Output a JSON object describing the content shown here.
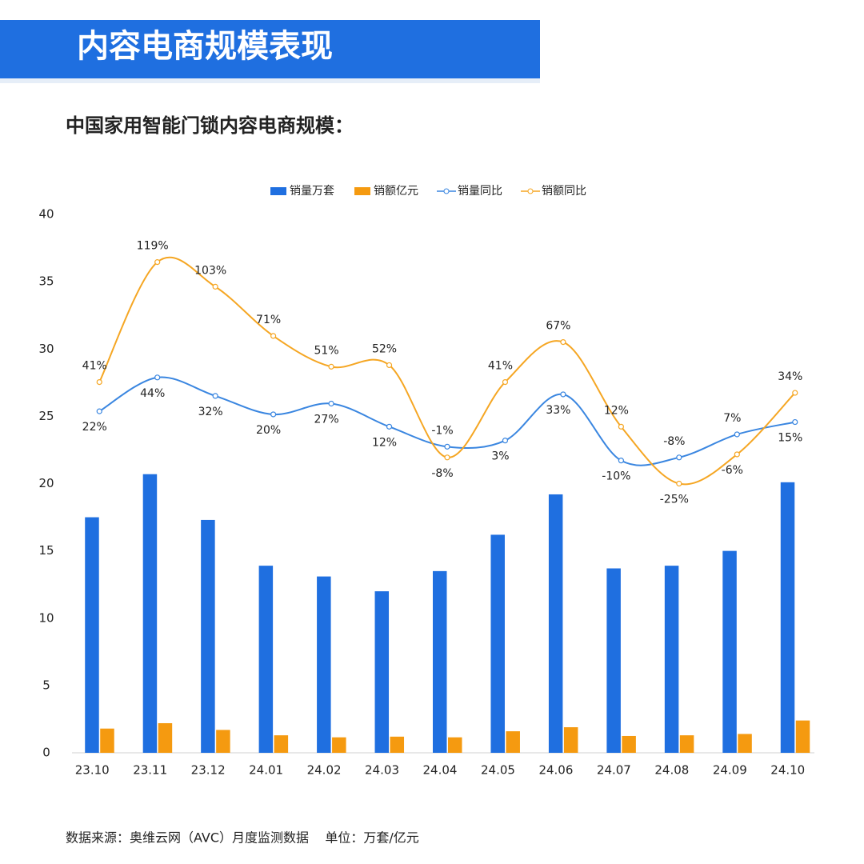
{
  "header": {
    "title": "内容电商规模表现"
  },
  "footer": {
    "source": "数据来源：奥维云网（AVC）月度监测数据    单位：万套/亿元"
  },
  "chart_data": {
    "type": "combo",
    "title": "中国家用智能门锁内容电商规模：",
    "categories": [
      "23.10",
      "23.11",
      "23.12",
      "24.01",
      "24.02",
      "24.03",
      "24.04",
      "24.05",
      "24.06",
      "24.07",
      "24.08",
      "24.09",
      "24.10"
    ],
    "ylim": [
      0,
      40
    ],
    "yticks": [
      0,
      5,
      10,
      15,
      20,
      25,
      30,
      35,
      40
    ],
    "y2lim": [
      -200,
      150
    ],
    "series": [
      {
        "name": "销量万套",
        "type": "bar",
        "color": "#1f6fe0",
        "values": [
          17.5,
          20.7,
          17.3,
          13.9,
          13.1,
          12.0,
          13.5,
          16.2,
          19.2,
          13.7,
          13.9,
          15.0,
          20.1
        ]
      },
      {
        "name": "销额亿元",
        "type": "bar",
        "color": "#f59a10",
        "values": [
          1.8,
          2.2,
          1.7,
          1.3,
          1.15,
          1.2,
          1.15,
          1.6,
          1.9,
          1.25,
          1.3,
          1.4,
          2.4
        ]
      },
      {
        "name": "销量同比",
        "type": "line",
        "axis": "y2",
        "color": "#3a86e0",
        "values": [
          22,
          44,
          32,
          20,
          27,
          12,
          -1,
          3,
          33,
          -10,
          -8,
          7,
          15
        ],
        "value_labels": [
          "22%",
          "44%",
          "32%",
          "20%",
          "27%",
          "12%",
          "-1%",
          "3%",
          "33%",
          "-10%",
          "-8%",
          "7%",
          "15%"
        ]
      },
      {
        "name": "销额同比",
        "type": "line",
        "axis": "y2",
        "color": "#f5a623",
        "values": [
          41,
          119,
          103,
          71,
          51,
          52,
          -8,
          41,
          67,
          12,
          -25,
          -6,
          34
        ],
        "value_labels": [
          "41%",
          "119%",
          "103%",
          "71%",
          "51%",
          "52%",
          "-8%",
          "41%",
          "67%",
          "12%",
          "-25%",
          "-6%",
          "34%"
        ]
      }
    ]
  }
}
